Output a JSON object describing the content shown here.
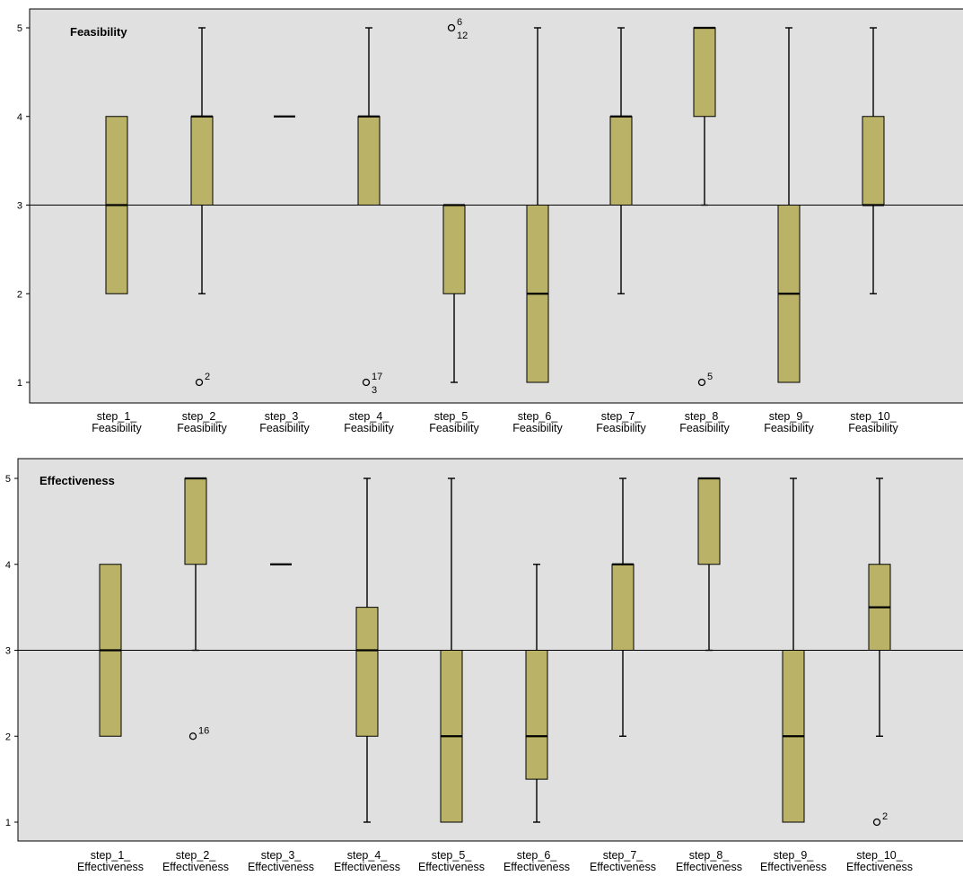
{
  "colors": {
    "plot_bg": "#e0e0e0",
    "box_fill": "#bab267",
    "stroke": "#000000"
  },
  "chart_data": [
    {
      "type": "boxplot",
      "title": "Feasibility",
      "ylim": [
        1,
        5
      ],
      "yticks": [
        "1",
        "2",
        "3",
        "4",
        "5"
      ],
      "reference_line": 3,
      "categories": [
        [
          "step_1_",
          "Feasibility"
        ],
        [
          "step_2_",
          "Feasibility"
        ],
        [
          "step_3_",
          "Feasibility"
        ],
        [
          "step_4_",
          "Feasibility"
        ],
        [
          "step_5_",
          "Feasibility"
        ],
        [
          "step_6_",
          "Feasibility"
        ],
        [
          "step_7_",
          "Feasibility"
        ],
        [
          "step_8_",
          "Feasibility"
        ],
        [
          "step_9_",
          "Feasibility"
        ],
        [
          "step_10_",
          "Feasibility"
        ]
      ],
      "boxes": [
        {
          "q1": 2,
          "median": 3,
          "q3": 4,
          "lo": 2,
          "hi": 4,
          "outliers": []
        },
        {
          "q1": 3,
          "median": 4,
          "q3": 4,
          "lo": 2,
          "hi": 5,
          "outliers": [
            {
              "value": 1,
              "labels": [
                "2"
              ]
            }
          ]
        },
        {
          "q1": 4,
          "median": 4,
          "q3": 4,
          "lo": 4,
          "hi": 4,
          "outliers": []
        },
        {
          "q1": 3,
          "median": 4,
          "q3": 4,
          "lo": 3,
          "hi": 5,
          "outliers": [
            {
              "value": 1,
              "labels": [
                "17",
                "3"
              ]
            }
          ]
        },
        {
          "q1": 2,
          "median": 3,
          "q3": 3,
          "lo": 1,
          "hi": 3,
          "outliers": [
            {
              "value": 5,
              "labels": [
                "6",
                "12"
              ]
            }
          ]
        },
        {
          "q1": 1,
          "median": 2,
          "q3": 3,
          "lo": 1,
          "hi": 5,
          "outliers": []
        },
        {
          "q1": 3,
          "median": 4,
          "q3": 4,
          "lo": 2,
          "hi": 5,
          "outliers": []
        },
        {
          "q1": 4,
          "median": 5,
          "q3": 5,
          "lo": 3,
          "hi": 5,
          "outliers": [
            {
              "value": 1,
              "labels": [
                "5"
              ]
            }
          ]
        },
        {
          "q1": 1,
          "median": 2,
          "q3": 3,
          "lo": 1,
          "hi": 5,
          "outliers": []
        },
        {
          "q1": 3,
          "median": 3,
          "q3": 4,
          "lo": 2,
          "hi": 5,
          "outliers": []
        }
      ]
    },
    {
      "type": "boxplot",
      "title": "Effectiveness",
      "ylim": [
        1,
        5
      ],
      "yticks": [
        "1",
        "2",
        "3",
        "4",
        "5"
      ],
      "reference_line": 3,
      "categories": [
        [
          "step_1_",
          "Effectiveness"
        ],
        [
          "step_2_",
          "Effectiveness"
        ],
        [
          "step_3_",
          "Effectiveness"
        ],
        [
          "step_4_",
          "Effectiveness"
        ],
        [
          "step_5_",
          "Effectiveness"
        ],
        [
          "step_6_",
          "Effectiveness"
        ],
        [
          "step_7_",
          "Effectiveness"
        ],
        [
          "step_8_",
          "Effectiveness"
        ],
        [
          "step_9_",
          "Effectiveness"
        ],
        [
          "step_10_",
          "Effectiveness"
        ]
      ],
      "boxes": [
        {
          "q1": 2,
          "median": 3,
          "q3": 4,
          "lo": 2,
          "hi": 4,
          "outliers": []
        },
        {
          "q1": 4,
          "median": 5,
          "q3": 5,
          "lo": 3,
          "hi": 5,
          "outliers": [
            {
              "value": 2,
              "labels": [
                "16"
              ]
            }
          ]
        },
        {
          "q1": 4,
          "median": 4,
          "q3": 4,
          "lo": 4,
          "hi": 4,
          "outliers": []
        },
        {
          "q1": 2,
          "median": 3,
          "q3": 3.5,
          "lo": 1,
          "hi": 5,
          "outliers": []
        },
        {
          "q1": 1,
          "median": 2,
          "q3": 3,
          "lo": 1,
          "hi": 5,
          "outliers": []
        },
        {
          "q1": 1.5,
          "median": 2,
          "q3": 3,
          "lo": 1,
          "hi": 4,
          "outliers": []
        },
        {
          "q1": 3,
          "median": 4,
          "q3": 4,
          "lo": 2,
          "hi": 5,
          "outliers": []
        },
        {
          "q1": 4,
          "median": 5,
          "q3": 5,
          "lo": 3,
          "hi": 5,
          "outliers": []
        },
        {
          "q1": 1,
          "median": 2,
          "q3": 3,
          "lo": 1,
          "hi": 5,
          "outliers": []
        },
        {
          "q1": 3,
          "median": 3.5,
          "q3": 4,
          "lo": 2,
          "hi": 5,
          "outliers": [
            {
              "value": 1,
              "labels": [
                "2"
              ]
            }
          ]
        }
      ]
    }
  ]
}
